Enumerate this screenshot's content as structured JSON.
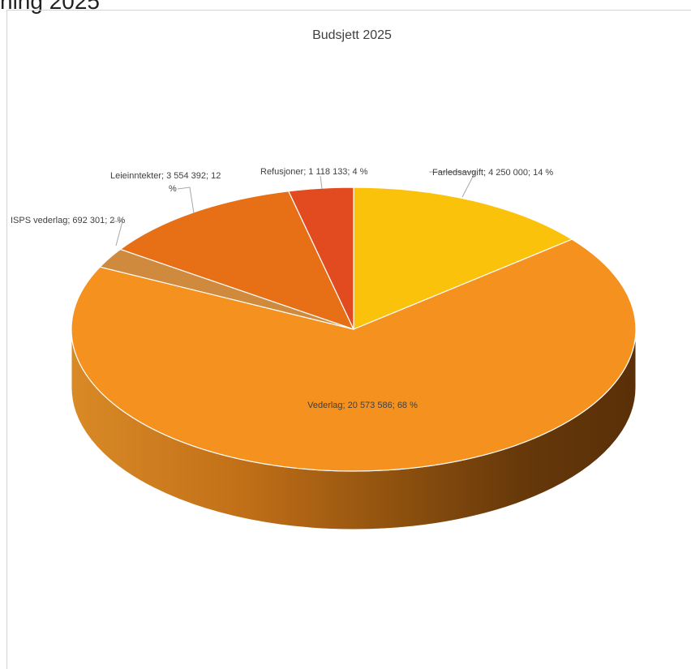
{
  "header_fragment": "ning 2025",
  "chart_data": {
    "type": "pie",
    "title": "Budsjett  2025",
    "slices": [
      {
        "label": "Farledsavgift",
        "value": "4 250 000",
        "percent": "14 %",
        "raw": 4250000,
        "color": "#fac20a"
      },
      {
        "label": "Vederlag",
        "value": "20 573 586",
        "percent": "68 %",
        "raw": 20573586,
        "color": "#f5911f"
      },
      {
        "label": "ISPS vederlag",
        "value": "692 301",
        "percent": "2 %",
        "raw": 692301,
        "color": "#cf8a3e"
      },
      {
        "label": "Leieinntekter",
        "value": "3 554 392",
        "percent": "12 %",
        "raw": 3554392,
        "color": "#e77017"
      },
      {
        "label": "Refusjoner",
        "value": "1 118 133",
        "percent": "4 %",
        "raw": 1118133,
        "color": "#e24a20"
      }
    ],
    "data_labels": [
      "Farledsavgift; 4 250 000; 14 %",
      "Vederlag; 20 573 586; 68 %",
      "ISPS vederlag; 692 301; 2 %",
      "Leieinntekter; 3 554 392; 12",
      "%",
      "Refusjoner; 1 118 133; 4 %"
    ]
  }
}
